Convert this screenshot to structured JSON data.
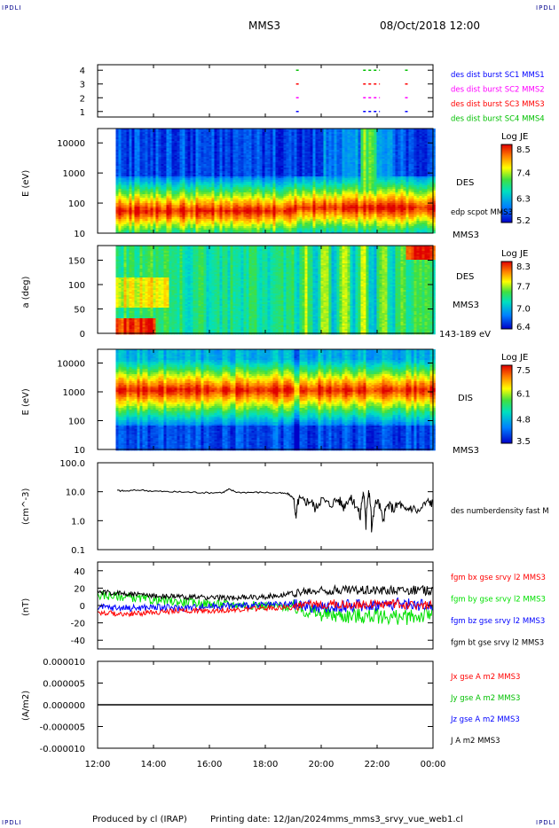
{
  "header": {
    "corner_tl": "IPDLI",
    "corner_tr": "IPDLI",
    "corner_bl": "IPDLI",
    "corner_br": "IPDLI",
    "title": "MMS3",
    "date": "08/Oct/2018 12:00"
  },
  "footer": {
    "produced": "Produced by cl (IRAP)",
    "printing": "Printing date: 12/Jan/2024",
    "file": "mms_mms3_srvy_vue_web1.cl"
  },
  "chart_data": [
    {
      "panel": "burst-intervals",
      "type": "scatter",
      "y_ticks": [
        "1",
        "2",
        "3",
        "4"
      ],
      "ylim": [
        0.6,
        4.4
      ],
      "legend": [
        {
          "label": "des dist burst SC1 MMS1",
          "color": "#0000ff",
          "level": 1
        },
        {
          "label": "des dist burst SC2 MMS2",
          "color": "#ff00ff",
          "level": 2
        },
        {
          "label": "des dist burst SC3 MMS3",
          "color": "#ff0000",
          "level": 3
        },
        {
          "label": "des dist burst SC4 MMS4",
          "color": "#00c000",
          "level": 4
        }
      ],
      "intervals_hours": [
        [
          19.1,
          19.25
        ],
        [
          21.5,
          22.1
        ],
        [
          23.0,
          23.1
        ]
      ]
    },
    {
      "panel": "des-energy-spectrogram",
      "type": "heatmap",
      "ylabel": "E (eV)",
      "y_scale": "log",
      "ylim": [
        10,
        30000
      ],
      "y_ticks": [
        "10",
        "100",
        "1000",
        "10000"
      ],
      "colorbar": {
        "title": "Log JE",
        "ticks": [
          "8.5",
          "7.4",
          "6.3",
          "5.2"
        ],
        "range": [
          5.2,
          8.5
        ]
      },
      "labels": [
        "DES",
        "edp scpot MMS3",
        "MMS3"
      ],
      "data_start_hour": 12.65
    },
    {
      "panel": "des-pitch-angle",
      "type": "heatmap",
      "ylabel": "a (deg)",
      "ylim": [
        0,
        180
      ],
      "y_ticks": [
        "0",
        "50",
        "100",
        "150"
      ],
      "colorbar": {
        "title": "Log JE",
        "ticks": [
          "8.3",
          "7.7",
          "7.0",
          "6.4"
        ],
        "range": [
          6.4,
          8.3
        ]
      },
      "labels": [
        "DES",
        "MMS3",
        "143-189 eV"
      ],
      "data_start_hour": 12.65
    },
    {
      "panel": "dis-energy-spectrogram",
      "type": "heatmap",
      "ylabel": "E (eV)",
      "y_scale": "log",
      "ylim": [
        10,
        30000
      ],
      "y_ticks": [
        "10",
        "100",
        "1000",
        "10000"
      ],
      "colorbar": {
        "title": "Log JE",
        "ticks": [
          "7.5",
          "6.1",
          "4.8",
          "3.5"
        ],
        "range": [
          3.5,
          7.5
        ]
      },
      "labels": [
        "DIS",
        "MMS3"
      ],
      "data_start_hour": 12.65
    },
    {
      "panel": "number-density",
      "type": "line",
      "ylabel": "(cm^-3)",
      "y_scale": "log",
      "ylim": [
        0.1,
        100
      ],
      "y_ticks": [
        "100.0",
        "10.0",
        "1.0",
        "0.1"
      ],
      "legend": [
        {
          "label": "des numberdensity fast M",
          "color": "#000000"
        }
      ],
      "series": [
        {
          "name": "des numberdensity fast M",
          "x": [
            12.7,
            13.0,
            13.5,
            14.0,
            14.5,
            15.0,
            15.5,
            16.0,
            16.5,
            16.7,
            17.0,
            17.5,
            18.0,
            18.5,
            18.8,
            19.0,
            19.1,
            19.2,
            19.4,
            19.6,
            19.8,
            20.0,
            20.3,
            20.6,
            20.8,
            21.0,
            21.2,
            21.4,
            21.5,
            21.6,
            21.7,
            21.8,
            22.0,
            22.2,
            22.4,
            22.6,
            22.8,
            23.0,
            23.2,
            23.5,
            23.8,
            24.0
          ],
          "values": [
            11,
            10.5,
            11.5,
            10.5,
            10,
            9.8,
            9.5,
            9.2,
            9.5,
            12,
            9.5,
            9.5,
            9.5,
            9.0,
            8.5,
            6.0,
            0.9,
            5.5,
            4.5,
            5.0,
            2.5,
            5.5,
            3.5,
            5.5,
            3.0,
            6.0,
            4.0,
            1.2,
            8.0,
            0.6,
            9.0,
            0.35,
            5.0,
            0.8,
            3.5,
            2.5,
            4.0,
            2.0,
            3.0,
            2.0,
            4.5,
            4.0
          ]
        }
      ]
    },
    {
      "panel": "magnetic-field",
      "type": "line",
      "ylabel": "(nT)",
      "ylim": [
        -50,
        50
      ],
      "y_ticks": [
        "40",
        "20",
        "0",
        "-20",
        "-40"
      ],
      "legend": [
        {
          "label": "fgm bx gse srvy l2 MMS3",
          "color": "#ff0000"
        },
        {
          "label": "fgm by gse srvy l2 MMS3",
          "color": "#00e000"
        },
        {
          "label": "fgm bz gse srvy l2 MMS3",
          "color": "#0000ff"
        },
        {
          "label": "fgm bt gse srvy l2 MMS3",
          "color": "#000000"
        }
      ],
      "x": [
        12.0,
        13.0,
        14.0,
        15.0,
        16.0,
        17.0,
        18.0,
        19.0,
        20.0,
        21.0,
        22.0,
        23.0,
        24.0
      ],
      "series": [
        {
          "name": "fgm bx gse srvy l2 MMS3",
          "values": [
            -8,
            -10,
            -8,
            -6,
            -6,
            -5,
            -3,
            -2,
            2,
            1,
            2,
            1,
            0
          ]
        },
        {
          "name": "fgm by gse srvy l2 MMS3",
          "values": [
            12,
            10,
            6,
            4,
            2,
            1,
            0,
            -2,
            -10,
            -12,
            -12,
            -14,
            -10
          ]
        },
        {
          "name": "fgm bz gse srvy l2 MMS3",
          "values": [
            -2,
            -3,
            -2,
            -3,
            -1,
            0,
            0,
            1,
            -3,
            0,
            1,
            2,
            0
          ]
        },
        {
          "name": "fgm bt gse srvy l2 MMS3",
          "values": [
            15,
            14,
            11,
            10,
            9,
            9,
            10,
            14,
            17,
            18,
            18,
            18,
            17
          ]
        }
      ]
    },
    {
      "panel": "current-density",
      "type": "line",
      "ylabel": "(A/m2)",
      "ylim": [
        -1e-05,
        1e-05
      ],
      "y_ticks": [
        "0.000010",
        "0.000005",
        "0.000000",
        "-0.000005",
        "-0.000010"
      ],
      "legend": [
        {
          "label": "Jx gse A m2 MMS3",
          "color": "#ff0000"
        },
        {
          "label": "Jy gse A m2 MMS3",
          "color": "#00c000"
        },
        {
          "label": "Jz gse A m2 MMS3",
          "color": "#0000ff"
        },
        {
          "label": "J A m2 MMS3",
          "color": "#000000"
        }
      ],
      "x": [
        12.0,
        24.0
      ],
      "series": [
        {
          "name": "J A m2 MMS3",
          "values": [
            0,
            0
          ]
        }
      ]
    }
  ],
  "time_axis": {
    "ticks": [
      "12:00",
      "14:00",
      "16:00",
      "18:00",
      "20:00",
      "22:00",
      "00:00"
    ],
    "hours": [
      12,
      14,
      16,
      18,
      20,
      22,
      24
    ],
    "xlim": [
      12,
      24
    ]
  }
}
